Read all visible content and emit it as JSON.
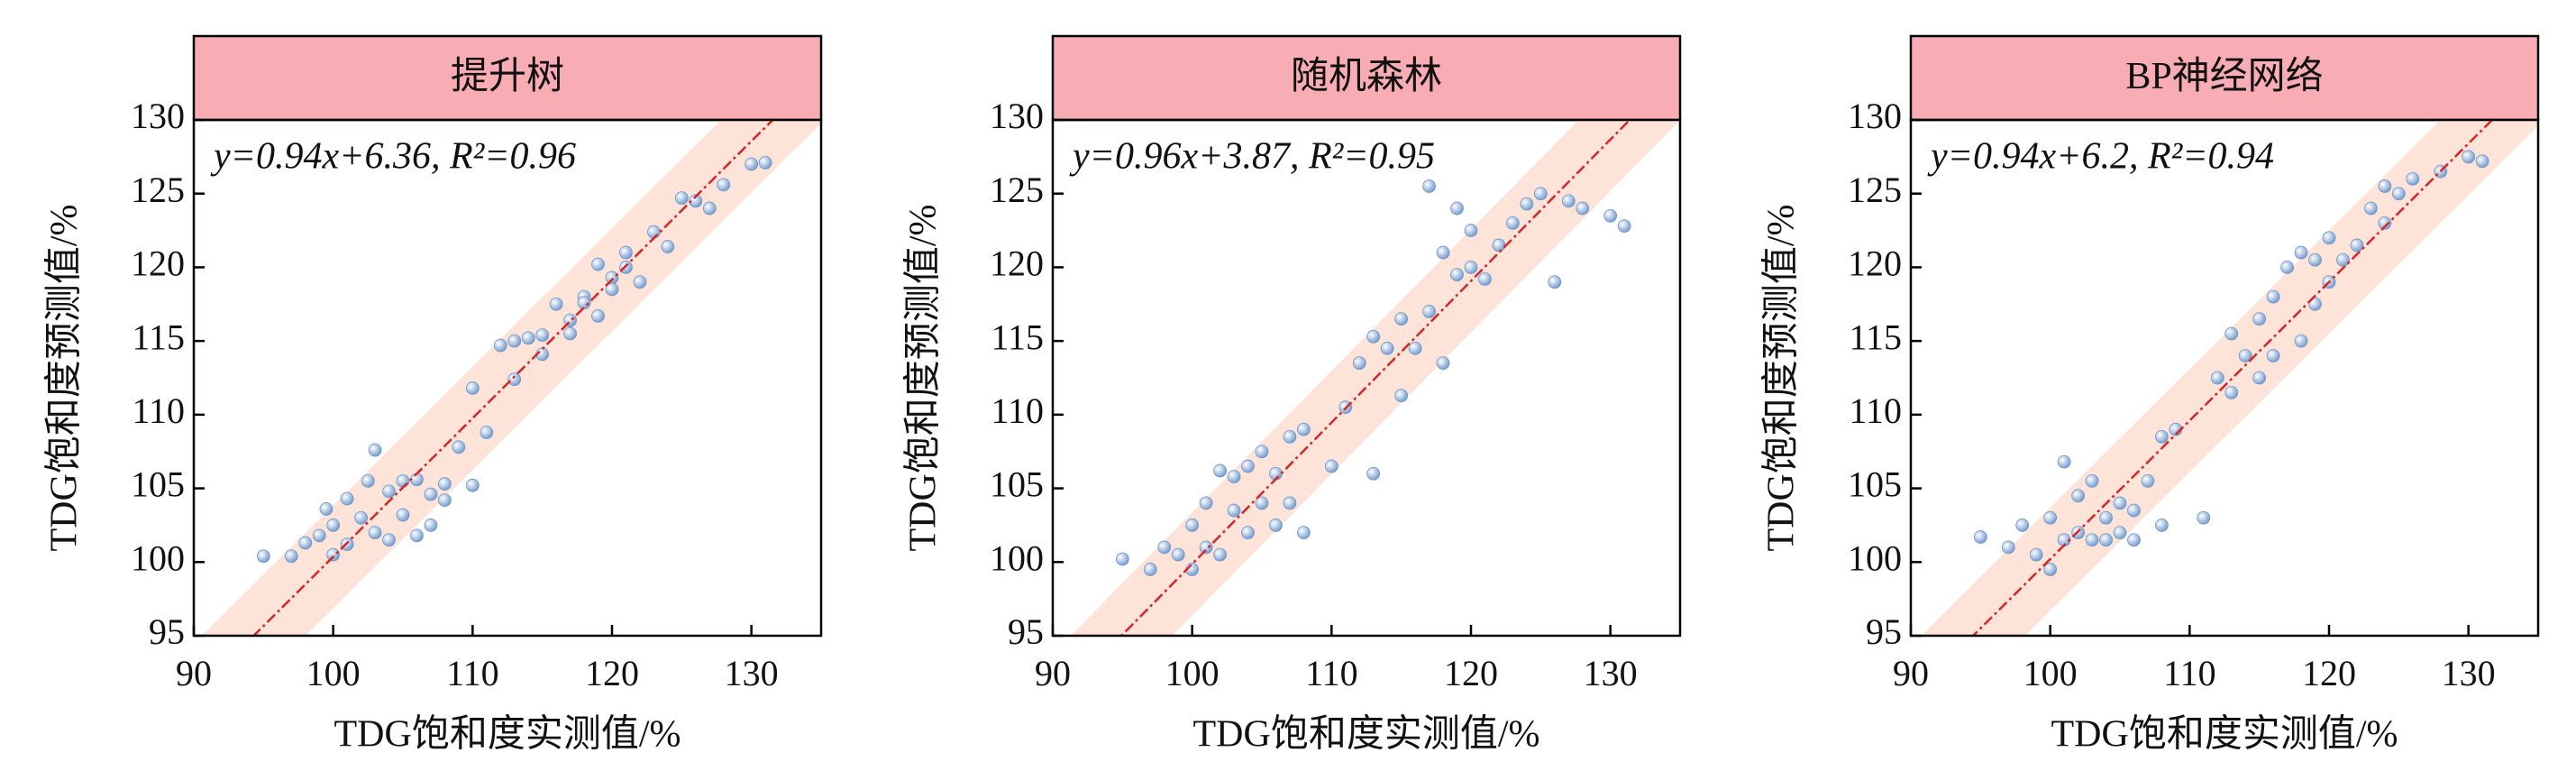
{
  "chart_data": [
    {
      "type": "scatter",
      "title": "提升树",
      "annotation": "y=0.94x+6.36, R²=0.96",
      "x_label": "TDG饱和度实测值/%",
      "y_label": "TDG饱和度预测值/%",
      "xlim": [
        90,
        135
      ],
      "ylim": [
        95,
        130
      ],
      "xticks": [
        90,
        100,
        110,
        120,
        130
      ],
      "yticks": [
        95,
        100,
        105,
        110,
        115,
        120,
        125,
        130
      ],
      "header_color": "#f8adb5",
      "color": "#6f98cc",
      "fit": {
        "slope": 0.94,
        "intercept": 6.36,
        "color": "#d62728"
      },
      "band": {
        "halfwidth": 3.5,
        "color": "#fde3d8"
      },
      "x": [
        95,
        97,
        98,
        99,
        99.5,
        100,
        100,
        101,
        101,
        102,
        102.5,
        103,
        103,
        104,
        104,
        105,
        105,
        106,
        106,
        107,
        107,
        108,
        108,
        109,
        110,
        110,
        111,
        112,
        113,
        113,
        114,
        115,
        115,
        116,
        117,
        117,
        118,
        118,
        119,
        119,
        120,
        120,
        121,
        121,
        122,
        123,
        124,
        125,
        126,
        127,
        128,
        130,
        131
      ],
      "values": [
        100.4,
        100.4,
        101.3,
        101.8,
        103.6,
        100.5,
        102.5,
        101.2,
        104.3,
        103,
        105.5,
        107.6,
        102,
        104.8,
        101.5,
        105.5,
        103.2,
        105.6,
        101.8,
        104.6,
        102.5,
        105.3,
        104.2,
        107.8,
        111.8,
        105.2,
        108.8,
        114.7,
        115,
        112.4,
        115.2,
        114.1,
        115.4,
        117.5,
        116.4,
        115.5,
        118,
        117.6,
        120.2,
        116.7,
        119.3,
        118.5,
        121,
        120,
        119,
        122.4,
        121.4,
        124.7,
        124.5,
        124,
        125.6,
        127,
        127.1
      ]
    },
    {
      "type": "scatter",
      "title": "随机森林",
      "annotation": "y=0.96x+3.87, R²=0.95",
      "x_label": "TDG饱和度实测值/%",
      "y_label": "TDG饱和度预测值/%",
      "xlim": [
        90,
        135
      ],
      "ylim": [
        95,
        130
      ],
      "xticks": [
        90,
        100,
        110,
        120,
        130
      ],
      "yticks": [
        95,
        100,
        105,
        110,
        115,
        120,
        125,
        130
      ],
      "header_color": "#f8adb5",
      "color": "#6f98cc",
      "fit": {
        "slope": 0.96,
        "intercept": 3.87,
        "color": "#d62728"
      },
      "band": {
        "halfwidth": 3.5,
        "color": "#fde3d8"
      },
      "x": [
        95,
        97,
        98,
        99,
        100,
        100,
        101,
        101,
        102,
        102,
        103,
        103,
        104,
        104,
        105,
        105,
        106,
        106,
        107,
        107,
        108,
        108,
        110,
        111,
        112,
        113,
        113,
        114,
        115,
        115,
        116,
        117,
        117,
        118,
        118,
        119,
        119,
        120,
        120,
        121,
        122,
        123,
        124,
        125,
        126,
        127,
        128,
        130,
        131
      ],
      "values": [
        100.2,
        99.5,
        101,
        100.5,
        102.5,
        99.5,
        104,
        101,
        106.2,
        100.5,
        103.5,
        105.8,
        102,
        106.5,
        104,
        107.5,
        102.5,
        106,
        104,
        108.5,
        102,
        109,
        106.5,
        110.5,
        113.5,
        115.3,
        106,
        114.5,
        111.3,
        116.5,
        114.5,
        125.5,
        117,
        121,
        113.5,
        119.5,
        124,
        120,
        122.5,
        119.2,
        121.5,
        123,
        124.3,
        125,
        119,
        124.5,
        124,
        123.5,
        122.8
      ]
    },
    {
      "type": "scatter",
      "title": "BP神经网络",
      "annotation": "y=0.94x+6.2, R²=0.94",
      "x_label": "TDG饱和度实测值/%",
      "y_label": "TDG饱和度预测值/%",
      "xlim": [
        90,
        135
      ],
      "ylim": [
        95,
        130
      ],
      "xticks": [
        90,
        100,
        110,
        120,
        130
      ],
      "yticks": [
        95,
        100,
        105,
        110,
        115,
        120,
        125,
        130
      ],
      "header_color": "#f8adb5",
      "color": "#6f98cc",
      "fit": {
        "slope": 0.94,
        "intercept": 6.2,
        "color": "#d62728"
      },
      "band": {
        "halfwidth": 3.5,
        "color": "#fde3d8"
      },
      "x": [
        95,
        97,
        98,
        99,
        100,
        100,
        101,
        101,
        102,
        102,
        103,
        103,
        104,
        104,
        105,
        105,
        106,
        106,
        107,
        108,
        108,
        109,
        111,
        112,
        113,
        113,
        114,
        115,
        115,
        116,
        116,
        117,
        118,
        118,
        119,
        119,
        120,
        120,
        121,
        122,
        123,
        124,
        124,
        125,
        126,
        128,
        130,
        131
      ],
      "values": [
        101.7,
        101,
        102.5,
        100.5,
        103,
        99.5,
        101.5,
        106.8,
        102,
        104.5,
        101.5,
        105.5,
        103,
        101.5,
        104,
        102,
        103.5,
        101.5,
        105.5,
        102.5,
        108.5,
        109,
        103,
        112.5,
        115.5,
        111.5,
        114,
        116.5,
        112.5,
        118,
        114,
        120,
        115,
        121,
        117.5,
        120.5,
        119,
        122,
        120.5,
        121.5,
        124,
        125.5,
        123,
        125,
        126,
        126.5,
        127.5,
        127.2
      ]
    }
  ]
}
